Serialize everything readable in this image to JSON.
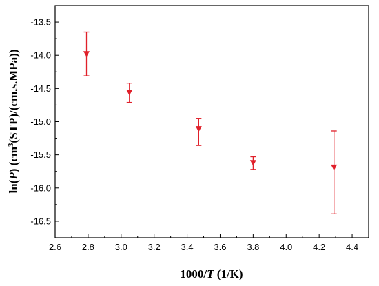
{
  "chart_data": {
    "type": "scatter",
    "title": "",
    "xlabel": {
      "prefix": "1000/",
      "italic": "T",
      "suffix": " (1/K)"
    },
    "ylabel": {
      "prefix": "ln(",
      "italic": "P",
      "middle": ") (cm",
      "sup": "3",
      "suffix": "(STP)/(cm.s.MPa))"
    },
    "xlim": [
      2.6,
      4.5
    ],
    "ylim": [
      -16.75,
      -13.25
    ],
    "xticks": [
      "2.6",
      "2.8",
      "3.0",
      "3.2",
      "3.4",
      "3.6",
      "3.8",
      "4.0",
      "4.2",
      "4.4"
    ],
    "yticks": [
      "-13.5",
      "-14.0",
      "-14.5",
      "-15.0",
      "-15.5",
      "-16.0",
      "-16.5"
    ],
    "grid": false,
    "marker": "triangle-down",
    "color": "#e0202a",
    "points": [
      {
        "x": 2.79,
        "y": -13.98,
        "err_high": -13.65,
        "err_low": -14.31
      },
      {
        "x": 3.05,
        "y": -14.56,
        "err_high": -14.42,
        "err_low": -14.71
      },
      {
        "x": 3.47,
        "y": -15.11,
        "err_high": -14.95,
        "err_low": -15.36
      },
      {
        "x": 3.8,
        "y": -15.62,
        "err_high": -15.53,
        "err_low": -15.72
      },
      {
        "x": 4.29,
        "y": -15.69,
        "err_high": -15.14,
        "err_low": -16.39
      }
    ]
  }
}
